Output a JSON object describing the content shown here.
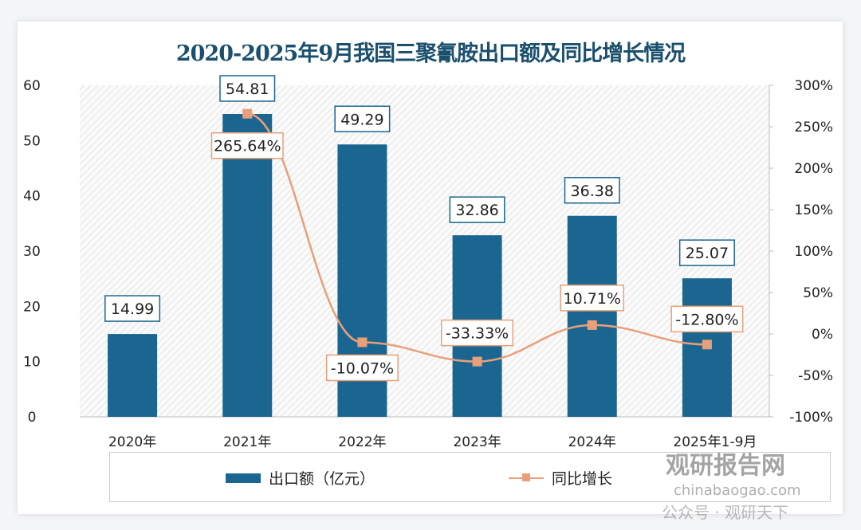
{
  "chart_data": {
    "type": "bar+line",
    "title": "2020-2025年9月我国三聚氰胺出口额及同比增长情况",
    "categories": [
      "2020年",
      "2021年",
      "2022年",
      "2023年",
      "2024年",
      "2025年1-9月"
    ],
    "series": [
      {
        "name": "出口额（亿元）",
        "type": "bar",
        "axis": "left",
        "values": [
          14.99,
          54.81,
          49.29,
          32.86,
          36.38,
          25.07
        ],
        "labels": [
          "14.99",
          "54.81",
          "49.29",
          "32.86",
          "36.38",
          "25.07"
        ],
        "color": "#1a6690"
      },
      {
        "name": "同比增长",
        "type": "line",
        "axis": "right",
        "values": [
          null,
          265.64,
          -10.07,
          -33.33,
          10.71,
          -12.8
        ],
        "labels": [
          "",
          "265.64%",
          "-10.07%",
          "-33.33%",
          "10.71%",
          "-12.80%"
        ],
        "color": "#e8a07a"
      }
    ],
    "yleft": {
      "range": [
        0,
        60
      ],
      "ticks": [
        "0",
        "10",
        "20",
        "30",
        "40",
        "50",
        "60"
      ]
    },
    "yright": {
      "range": [
        -100,
        300
      ],
      "ticks": [
        "-100%",
        "-50%",
        "0%",
        "50%",
        "100%",
        "150%",
        "200%",
        "250%",
        "300%"
      ]
    },
    "legend_position": "bottom",
    "grid": false
  },
  "watermark": {
    "logo": "观研报告网",
    "site": "chinabaogao.com",
    "account": "公众号 · 观研天下"
  }
}
